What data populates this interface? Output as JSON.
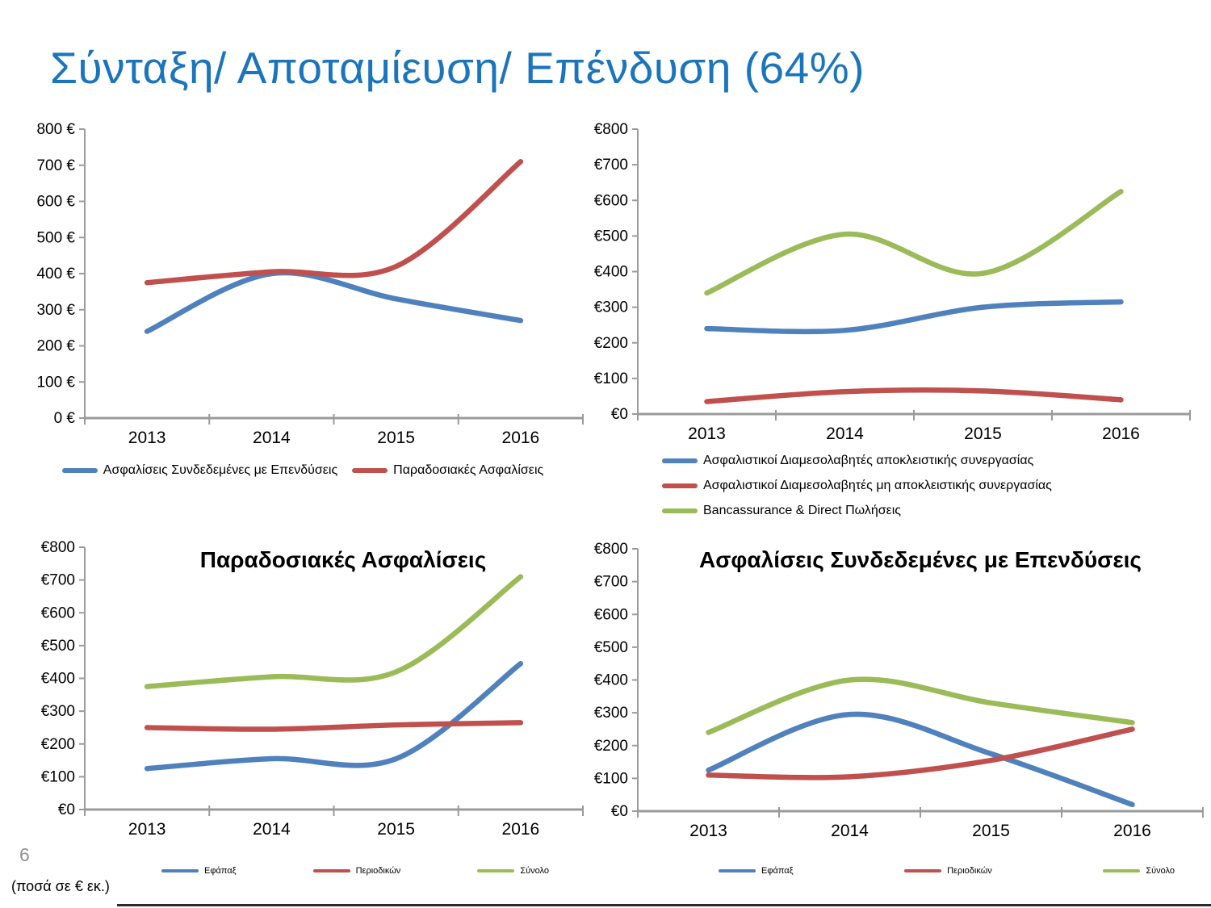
{
  "slide": {
    "title": "Σύνταξη/ Αποταμίευση/ Επένδυση (64%)",
    "page_number": "6",
    "footnote": "(ποσά σε € εκ.)"
  },
  "colors": {
    "title": "#1B75BC",
    "blue": "#4F81BD",
    "red": "#C0504D",
    "green": "#9BBB59",
    "axis": "#9B9B9B",
    "text": "#000000",
    "page_number": "#8F9193"
  },
  "chart_data": [
    {
      "type": "line",
      "title": "",
      "x": [
        "2013",
        "2014",
        "2015",
        "2016"
      ],
      "ylim": [
        0,
        800
      ],
      "grid": false,
      "legend_position": "bottom-center",
      "y_tick_values": [
        0,
        100,
        200,
        300,
        400,
        500,
        600,
        700,
        800
      ],
      "y_tick_labels": [
        "0 €",
        "100 €",
        "200 €",
        "300 €",
        "400 €",
        "500 €",
        "600 €",
        "700 €",
        "800 €"
      ],
      "series": [
        {
          "name": "Ασφαλίσεις Συνδεδεμένες με Επενδύσεις",
          "color": "blue",
          "values": [
            240,
            400,
            330,
            270
          ]
        },
        {
          "name": "Παραδοσιακές Ασφαλίσεις",
          "color": "red",
          "values": [
            375,
            405,
            420,
            710
          ]
        }
      ]
    },
    {
      "type": "line",
      "title": "",
      "x": [
        "2013",
        "2014",
        "2015",
        "2016"
      ],
      "ylim": [
        0,
        800
      ],
      "grid": false,
      "legend_position": "bottom-left-stacked",
      "y_tick_values": [
        0,
        100,
        200,
        300,
        400,
        500,
        600,
        700,
        800
      ],
      "y_tick_labels": [
        "€0",
        "€100",
        "€200",
        "€300",
        "€400",
        "€500",
        "€600",
        "€700",
        "€800"
      ],
      "series": [
        {
          "name": "Ασφαλιστικοί Διαμεσολαβητές αποκλειστικής συνεργασίας",
          "color": "blue",
          "values": [
            240,
            235,
            300,
            315
          ]
        },
        {
          "name": "Ασφαλιστικοί Διαμεσολαβητές μη αποκλειστικής συνεργασίας",
          "color": "red",
          "values": [
            35,
            63,
            65,
            40
          ]
        },
        {
          "name": "Bancassurance & Direct Πωλήσεις",
          "color": "green",
          "values": [
            340,
            505,
            395,
            625
          ]
        }
      ]
    },
    {
      "type": "line",
      "title": "Παραδοσιακές Ασφαλίσεις",
      "x": [
        "2013",
        "2014",
        "2015",
        "2016"
      ],
      "ylim": [
        0,
        800
      ],
      "grid": false,
      "legend_position": "bottom-spread",
      "y_tick_values": [
        0,
        100,
        200,
        300,
        400,
        500,
        600,
        700,
        800
      ],
      "y_tick_labels": [
        "€0",
        "€100",
        "€200",
        "€300",
        "€400",
        "€500",
        "€600",
        "€700",
        "€800"
      ],
      "series": [
        {
          "name": "Εφάπαξ",
          "color": "blue",
          "values": [
            125,
            155,
            155,
            445
          ]
        },
        {
          "name": "Περιοδικών",
          "color": "red",
          "values": [
            250,
            245,
            258,
            265
          ]
        },
        {
          "name": "Σύνολο",
          "color": "green",
          "values": [
            375,
            405,
            420,
            710
          ]
        }
      ]
    },
    {
      "type": "line",
      "title": "Ασφαλίσεις Συνδεδεμένες με Επενδύσεις",
      "x": [
        "2013",
        "2014",
        "2015",
        "2016"
      ],
      "ylim": [
        0,
        800
      ],
      "grid": false,
      "legend_position": "bottom-spread",
      "y_tick_values": [
        0,
        100,
        200,
        300,
        400,
        500,
        600,
        700,
        800
      ],
      "y_tick_labels": [
        "€0",
        "€100",
        "€200",
        "€300",
        "€400",
        "€500",
        "€600",
        "€700",
        "€800"
      ],
      "series": [
        {
          "name": "Εφάπαξ",
          "color": "blue",
          "values": [
            125,
            295,
            175,
            20
          ]
        },
        {
          "name": "Περιοδικών",
          "color": "red",
          "values": [
            110,
            105,
            155,
            250
          ]
        },
        {
          "name": "Σύνολο",
          "color": "green",
          "values": [
            240,
            400,
            330,
            270
          ]
        }
      ]
    }
  ]
}
